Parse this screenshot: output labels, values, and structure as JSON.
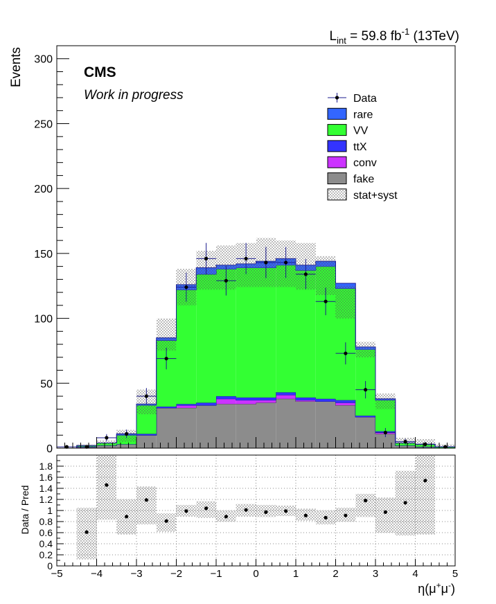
{
  "header": {
    "lumi_prefix": "L",
    "lumi_sub": "int",
    "lumi_value": " = 59.8 fb",
    "lumi_sup": "-1",
    "lumi_energy": " (13TeV)"
  },
  "labels": {
    "experiment": "CMS",
    "status": "Work in progress"
  },
  "chart_data": {
    "type": "bar",
    "stacked": true,
    "x_edges": [
      -5,
      -4.5,
      -4,
      -3.5,
      -3,
      -2.5,
      -2,
      -1.5,
      -1,
      -0.5,
      0,
      0.5,
      1,
      1.5,
      2,
      2.5,
      3,
      3.5,
      4,
      4.5,
      5
    ],
    "xlim": [
      -5,
      5
    ],
    "x_ticks": [
      -5,
      -4,
      -3,
      -2,
      -1,
      0,
      1,
      2,
      3,
      4,
      5
    ],
    "xlabel": "η(μ⁺μ⁻)",
    "xlabel_parts": {
      "base": "η(μ",
      "sup1": "+",
      "mid": "μ",
      "sup2": "-",
      "end": ")"
    },
    "top": {
      "ylabel": "Events",
      "ylim": [
        0,
        310
      ],
      "y_ticks": [
        0,
        50,
        100,
        150,
        200,
        250,
        300
      ],
      "series": [
        {
          "name": "fake",
          "color": "#8c8c8c",
          "values": [
            0,
            1,
            2,
            3,
            10,
            31,
            31,
            33,
            34,
            34,
            35,
            38,
            36,
            36,
            33,
            24,
            11,
            2,
            1,
            0
          ]
        },
        {
          "name": "conv",
          "color": "#cc33ff",
          "values": [
            0,
            0,
            0,
            0,
            0,
            0,
            2,
            0,
            4,
            3,
            2,
            3,
            1,
            0,
            2,
            0,
            1,
            0,
            0,
            0
          ]
        },
        {
          "name": "ttX",
          "color": "#3333ff",
          "values": [
            0,
            0,
            0,
            0,
            1,
            1,
            1,
            2,
            2,
            2,
            2,
            2,
            2,
            2,
            2,
            1,
            1,
            0,
            0,
            0
          ]
        },
        {
          "name": "VV",
          "color": "#33ff33",
          "values": [
            0,
            1,
            2,
            7,
            22,
            51,
            88,
            99,
            98,
            100,
            100,
            98,
            98,
            102,
            86,
            51,
            24,
            2,
            2,
            1
          ]
        },
        {
          "name": "rare",
          "color": "#3366ff",
          "values": [
            0,
            0,
            0,
            1,
            1,
            2,
            4,
            5,
            3,
            3,
            5,
            5,
            4,
            4,
            4,
            2,
            1,
            0,
            0,
            0
          ]
        }
      ],
      "data": {
        "name": "Data",
        "values": [
          1,
          1,
          8,
          11,
          40,
          69,
          124,
          146,
          129,
          146,
          143,
          143,
          134,
          113,
          73,
          45,
          12,
          5,
          3,
          1
        ],
        "errors": [
          1,
          1,
          2.8,
          3.3,
          6.3,
          8.3,
          11.1,
          12.1,
          11.4,
          12.1,
          12,
          12,
          11.6,
          10.6,
          8.5,
          6.7,
          3.5,
          2.2,
          1.7,
          1
        ]
      },
      "uncertainty": {
        "name": "stat+syst",
        "up": [
          1,
          3,
          6,
          14,
          45,
          100,
          138,
          152,
          156,
          158,
          162,
          160,
          158,
          148,
          125,
          82,
          42,
          8,
          7,
          3
        ],
        "down": [
          0,
          1,
          2,
          5,
          26,
          75,
          110,
          122,
          122,
          124,
          124,
          124,
          122,
          118,
          100,
          70,
          30,
          3,
          1,
          0
        ]
      }
    },
    "ratio": {
      "ylabel": "Data / Pred",
      "ylim": [
        0,
        2
      ],
      "y_ticks": [
        0,
        0.2,
        0.4,
        0.6,
        0.8,
        1,
        1.2,
        1.4,
        1.6,
        1.8
      ],
      "y_tick_labels": [
        "0",
        "0.2",
        "0.4",
        "0.6",
        "0.8",
        "1",
        "1.2",
        "1.4",
        "1.6",
        "1.8"
      ],
      "points": [
        null,
        0.61,
        1.46,
        0.89,
        1.19,
        0.81,
        0.99,
        1.04,
        0.89,
        1.01,
        0.97,
        0.99,
        0.91,
        0.87,
        0.91,
        1.18,
        0.97,
        1.14,
        1.54,
        null
      ],
      "band_up": [
        null,
        1.05,
        2.0,
        1.2,
        1.43,
        0.95,
        1.1,
        1.17,
        1.0,
        1.12,
        1.1,
        1.09,
        1.03,
        1.0,
        1.05,
        1.3,
        1.23,
        1.72,
        2.0,
        null
      ],
      "band_down": [
        null,
        0.12,
        0.83,
        0.57,
        0.75,
        0.62,
        0.89,
        0.87,
        0.8,
        0.89,
        0.88,
        0.9,
        0.82,
        0.75,
        0.8,
        0.88,
        0.6,
        0.55,
        0.57,
        null
      ]
    },
    "legend_position": "top-right",
    "legend": [
      {
        "label": "Data",
        "kind": "marker"
      },
      {
        "label": "rare",
        "kind": "box",
        "color": "#3366ff"
      },
      {
        "label": "VV",
        "kind": "box",
        "color": "#33ff33"
      },
      {
        "label": "ttX",
        "kind": "box",
        "color": "#3333ff"
      },
      {
        "label": "conv",
        "kind": "box",
        "color": "#cc33ff"
      },
      {
        "label": "fake",
        "kind": "box",
        "color": "#8c8c8c"
      },
      {
        "label": "stat+syst",
        "kind": "hatch"
      }
    ]
  }
}
